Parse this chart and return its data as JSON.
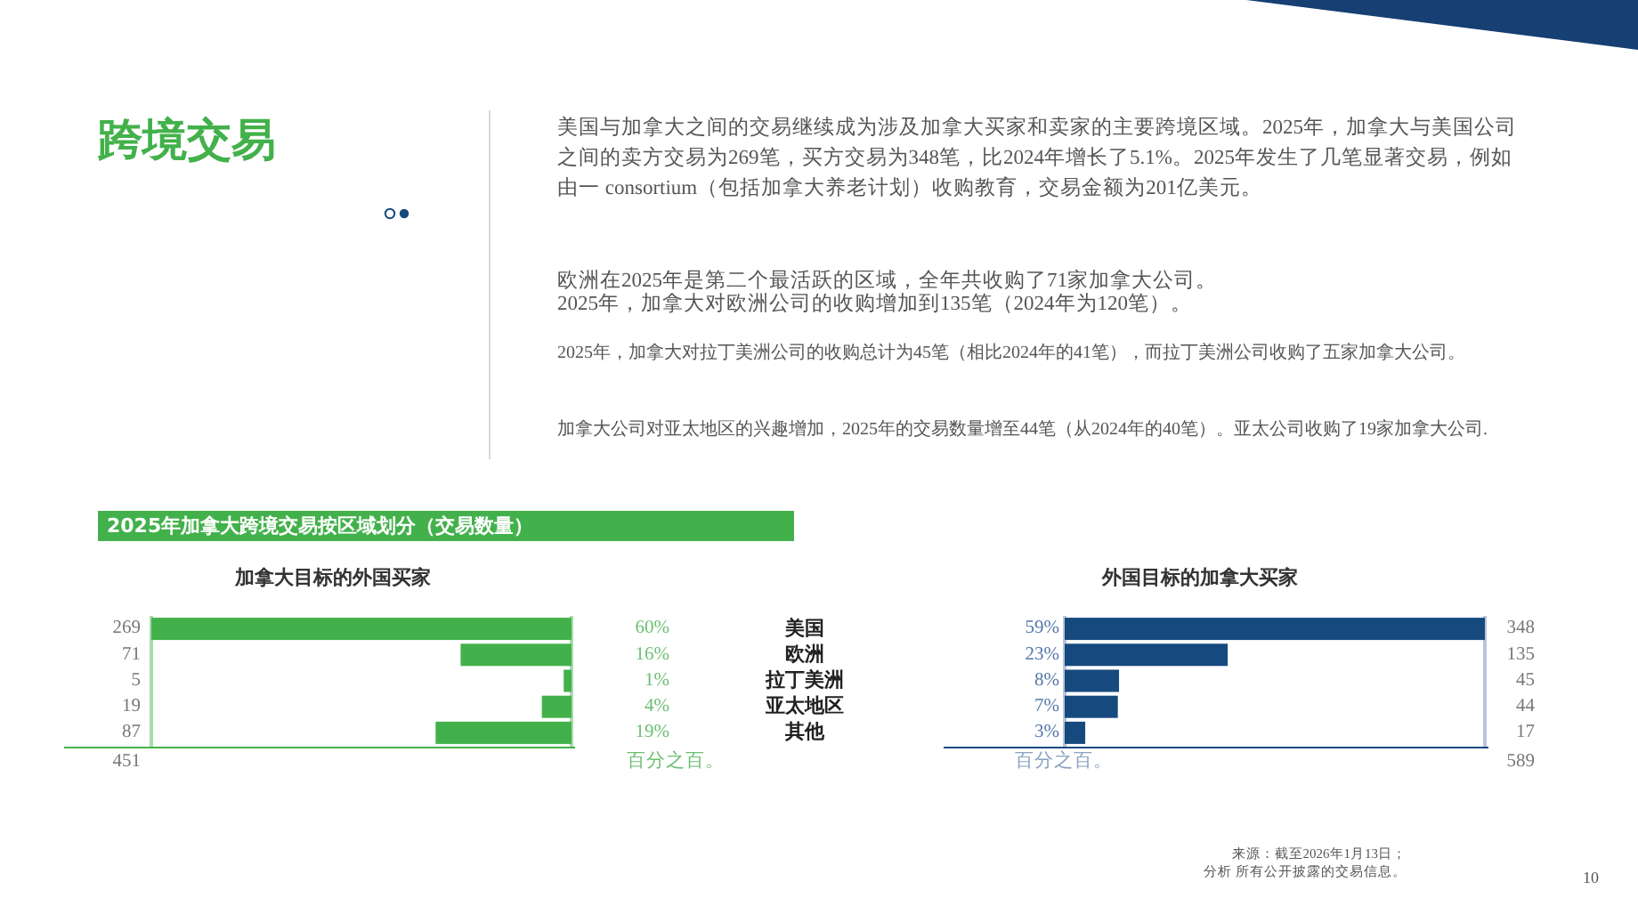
{
  "chart_data": [
    {
      "type": "other",
      "title": "跨境交易",
      "annotations": [
        "美国与加拿大之间的交易继续成为涉及加拿大买家和卖家的主要跨境区域。2025年，加拿大与美国公司之间的卖方交易为269笔，买方交易为348笔，比2024年增长了5.1%。2025年发生了几笔显著交易，例如由一 consortium（包括加拿大养老计划）收购教育，交易金额为201亿美元。",
        "欧洲在2025年是第二个最活跃的区域，全年共收购了71家加拿大公司。",
        "2025年，加拿大对欧洲公司的收购增加到135笔（2024年为120笔）。",
        "2025年，加拿大对拉丁美洲公司的收购总计为45笔（相比2024年的41笔），而拉丁美洲公司收购了五家加拿大公司。",
        "加拿大公司对亚太地区的兴趣增加，2025年的交易数量增至44笔（从2024年的40笔）。亚太公司收购了19家加拿大公司.",
        "来源：截至2026年1月13日；",
        "分析 所有公开披露的交易信息。",
        "10"
      ]
    },
    {
      "type": "bar",
      "orientation": "horizontal",
      "title": "2025年加拿大跨境交易按区域划分（交易数量）",
      "subtitle": "加拿大目标的外国买家",
      "categories": [
        "美国",
        "欧洲",
        "拉丁美洲",
        "亚太地区",
        "其他"
      ],
      "values": [
        269,
        71,
        5,
        19,
        87
      ],
      "color": "#43b14b",
      "xlim": [
        269,
        0
      ],
      "data_labels": true,
      "annotations": [
        "451",
        "百分之百。",
        "60%",
        "16%",
        "1%",
        "4%",
        "19%"
      ]
    },
    {
      "type": "bar",
      "orientation": "horizontal",
      "title": "外国目标的加拿大买家",
      "categories": [
        null,
        null,
        null,
        null,
        null
      ],
      "values": [
        348,
        135,
        45,
        44,
        17
      ],
      "color": "#164a7f",
      "xlim": [
        0,
        348
      ],
      "data_labels": true,
      "annotations": [
        "百分之百。",
        "589",
        "59%",
        "23%",
        "8%",
        "7%",
        "3%"
      ]
    }
  ]
}
